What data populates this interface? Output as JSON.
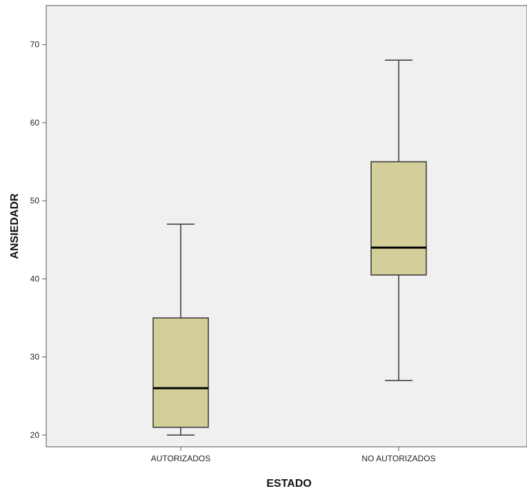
{
  "chart_data": {
    "type": "boxplot",
    "xlabel": "ESTADO",
    "ylabel": "ANSIEDADR",
    "ylim": [
      18.5,
      75
    ],
    "yticks": [
      20,
      30,
      40,
      50,
      60,
      70
    ],
    "categories": [
      "AUTORIZADOS",
      "NO AUTORIZADOS"
    ],
    "boxes": [
      {
        "category": "AUTORIZADOS",
        "min": 20,
        "q1": 21,
        "median": 26,
        "q3": 35,
        "max": 47
      },
      {
        "category": "NO AUTORIZADOS",
        "min": 27,
        "q1": 40.5,
        "median": 44,
        "q3": 55,
        "max": 68
      }
    ],
    "grid": false,
    "colors": {
      "plot_background": "#f0f0f0",
      "box_fill": "#d4cf9a",
      "box_stroke": "#333333",
      "median": "#000000",
      "axis": "#555555"
    }
  }
}
